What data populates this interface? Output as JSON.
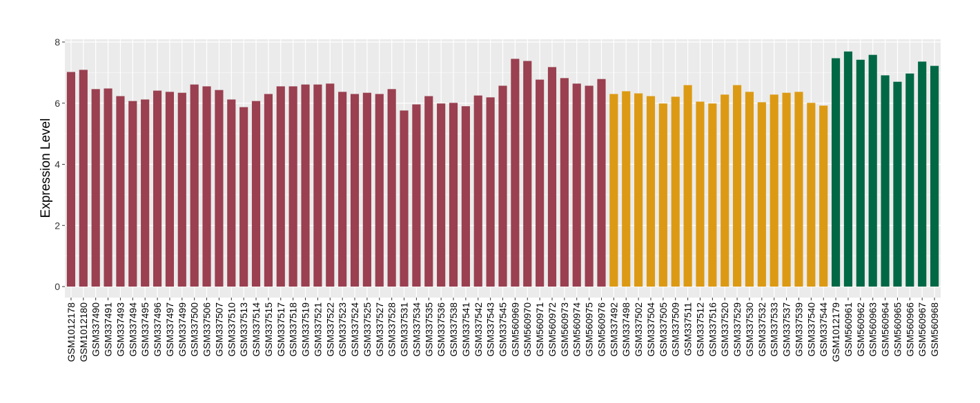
{
  "chart_data": {
    "type": "bar",
    "title": "",
    "xlabel": "",
    "ylabel": "Expression Level",
    "ylim": [
      0,
      8
    ],
    "yticks": [
      0,
      2,
      4,
      6,
      8
    ],
    "grid": true,
    "legend": "none",
    "colors": {
      "group1": "#9A4050",
      "group2": "#DC9A14",
      "group3": "#006845",
      "panel": "#EBEBEB"
    },
    "categories": [
      "GSM1012178",
      "GSM1012180",
      "GSM337490",
      "GSM337491",
      "GSM337493",
      "GSM337494",
      "GSM337495",
      "GSM337496",
      "GSM337497",
      "GSM337499",
      "GSM337500",
      "GSM337506",
      "GSM337507",
      "GSM337510",
      "GSM337513",
      "GSM337514",
      "GSM337515",
      "GSM337517",
      "GSM337518",
      "GSM337519",
      "GSM337521",
      "GSM337522",
      "GSM337523",
      "GSM337524",
      "GSM337525",
      "GSM337527",
      "GSM337528",
      "GSM337531",
      "GSM337534",
      "GSM337535",
      "GSM337536",
      "GSM337538",
      "GSM337541",
      "GSM337542",
      "GSM337543",
      "GSM337545",
      "GSM560969",
      "GSM560970",
      "GSM560971",
      "GSM560972",
      "GSM560973",
      "GSM560974",
      "GSM560975",
      "GSM560976",
      "GSM337492",
      "GSM337498",
      "GSM337502",
      "GSM337504",
      "GSM337505",
      "GSM337509",
      "GSM337511",
      "GSM337512",
      "GSM337516",
      "GSM337520",
      "GSM337529",
      "GSM337530",
      "GSM337532",
      "GSM337533",
      "GSM337537",
      "GSM337539",
      "GSM337540",
      "GSM337544",
      "GSM1012179",
      "GSM560961",
      "GSM560962",
      "GSM560963",
      "GSM560964",
      "GSM560965",
      "GSM560966",
      "GSM560967",
      "GSM560968"
    ],
    "values": [
      7.02,
      7.09,
      6.46,
      6.48,
      6.23,
      6.07,
      6.12,
      6.41,
      6.37,
      6.34,
      6.61,
      6.55,
      6.43,
      6.12,
      5.87,
      6.07,
      6.3,
      6.55,
      6.55,
      6.61,
      6.61,
      6.64,
      6.37,
      6.3,
      6.34,
      6.3,
      6.46,
      5.76,
      5.96,
      6.23,
      5.99,
      6.01,
      5.9,
      6.25,
      6.19,
      6.57,
      7.45,
      7.38,
      6.77,
      7.18,
      6.82,
      6.64,
      6.57,
      6.79,
      6.3,
      6.39,
      6.32,
      6.23,
      5.99,
      6.21,
      6.59,
      6.05,
      5.99,
      6.28,
      6.59,
      6.37,
      6.03,
      6.28,
      6.34,
      6.37,
      6.01,
      5.92,
      7.47,
      7.69,
      7.42,
      7.58,
      6.91,
      6.7,
      6.97,
      7.36,
      7.22
    ],
    "groups": [
      "group1",
      "group1",
      "group1",
      "group1",
      "group1",
      "group1",
      "group1",
      "group1",
      "group1",
      "group1",
      "group1",
      "group1",
      "group1",
      "group1",
      "group1",
      "group1",
      "group1",
      "group1",
      "group1",
      "group1",
      "group1",
      "group1",
      "group1",
      "group1",
      "group1",
      "group1",
      "group1",
      "group1",
      "group1",
      "group1",
      "group1",
      "group1",
      "group1",
      "group1",
      "group1",
      "group1",
      "group1",
      "group1",
      "group1",
      "group1",
      "group1",
      "group1",
      "group1",
      "group1",
      "group2",
      "group2",
      "group2",
      "group2",
      "group2",
      "group2",
      "group2",
      "group2",
      "group2",
      "group2",
      "group2",
      "group2",
      "group2",
      "group2",
      "group2",
      "group2",
      "group2",
      "group2",
      "group3",
      "group3",
      "group3",
      "group3",
      "group3",
      "group3",
      "group3",
      "group3",
      "group3"
    ]
  }
}
